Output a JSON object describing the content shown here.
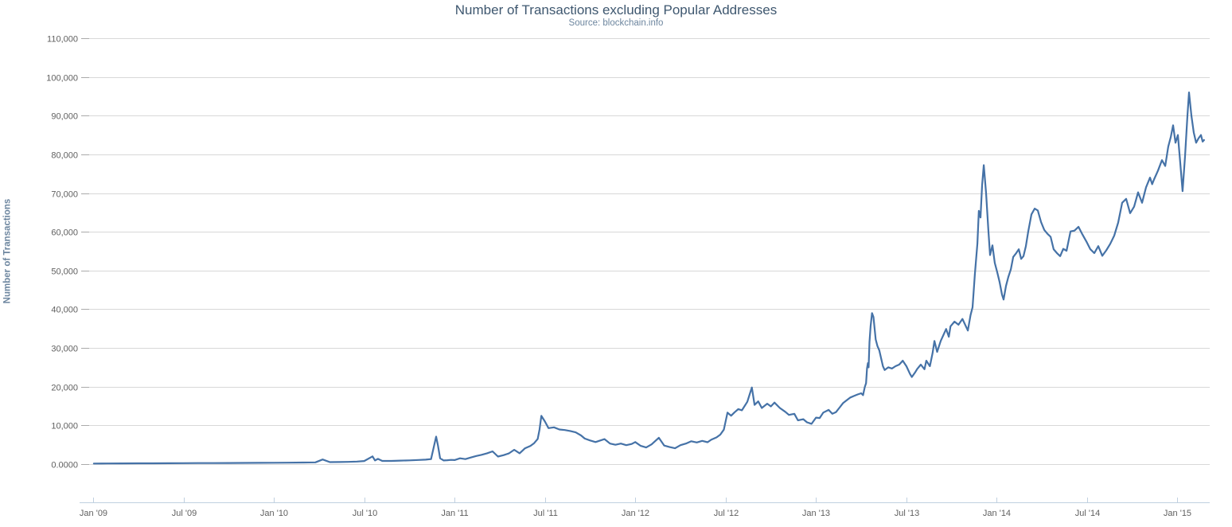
{
  "header": {
    "title": "Number of Transactions excluding Popular Addresses",
    "subtitle": "Source: blockchain.info"
  },
  "colors": {
    "series": "#4572A7",
    "title": "#3E576F",
    "subtitle": "#6D869F",
    "axis_labels": "#606060",
    "gridline": "#D8D8D8",
    "axis_line": "#C0D0E0",
    "y_tick": "#AAAAAA",
    "background": "#FFFFFF"
  },
  "chart_data": {
    "type": "line",
    "title": "Number of Transactions excluding Popular Addresses",
    "subtitle": "Source: blockchain.info",
    "xlabel": "",
    "ylabel": "Number of Transactions",
    "grid": true,
    "legend": false,
    "ylim": [
      0,
      110000
    ],
    "xlim_years": [
      2009.0,
      2015.18
    ],
    "y_ticks": [
      {
        "v": 110000,
        "label": "110,000"
      },
      {
        "v": 100000,
        "label": "100,000"
      },
      {
        "v": 90000,
        "label": "90,000"
      },
      {
        "v": 80000,
        "label": "80,000"
      },
      {
        "v": 70000,
        "label": "70,000"
      },
      {
        "v": 60000,
        "label": "60,000"
      },
      {
        "v": 50000,
        "label": "50,000"
      },
      {
        "v": 40000,
        "label": "40,000"
      },
      {
        "v": 30000,
        "label": "30,000"
      },
      {
        "v": 20000,
        "label": "20,000"
      },
      {
        "v": 10000,
        "label": "10,000"
      },
      {
        "v": 0,
        "label": "0.0000"
      }
    ],
    "x_ticks": [
      {
        "t": 2009.0,
        "label": "Jan '09"
      },
      {
        "t": 2009.5,
        "label": "Jul '09"
      },
      {
        "t": 2010.0,
        "label": "Jan '10"
      },
      {
        "t": 2010.5,
        "label": "Jul '10"
      },
      {
        "t": 2011.0,
        "label": "Jan '11"
      },
      {
        "t": 2011.5,
        "label": "Jul '11"
      },
      {
        "t": 2012.0,
        "label": "Jan '12"
      },
      {
        "t": 2012.5,
        "label": "Jul '12"
      },
      {
        "t": 2013.0,
        "label": "Jan '13"
      },
      {
        "t": 2013.5,
        "label": "Jul '13"
      },
      {
        "t": 2014.0,
        "label": "Jan '14"
      },
      {
        "t": 2014.5,
        "label": "Jul '14"
      },
      {
        "t": 2015.0,
        "label": "Jan '15"
      }
    ],
    "series": [
      {
        "name": "Number of Transactions",
        "color": "#4572A7",
        "points": [
          [
            2009.004,
            150
          ],
          [
            2009.08,
            160
          ],
          [
            2009.16,
            180
          ],
          [
            2009.25,
            200
          ],
          [
            2009.33,
            210
          ],
          [
            2009.42,
            230
          ],
          [
            2009.5,
            240
          ],
          [
            2009.58,
            260
          ],
          [
            2009.67,
            270
          ],
          [
            2009.75,
            290
          ],
          [
            2009.83,
            300
          ],
          [
            2009.92,
            320
          ],
          [
            2010.0,
            350
          ],
          [
            2010.08,
            380
          ],
          [
            2010.16,
            420
          ],
          [
            2010.23,
            460
          ],
          [
            2010.27,
            1200
          ],
          [
            2010.31,
            520
          ],
          [
            2010.36,
            540
          ],
          [
            2010.41,
            580
          ],
          [
            2010.46,
            650
          ],
          [
            2010.5,
            800
          ],
          [
            2010.546,
            2000
          ],
          [
            2010.56,
            950
          ],
          [
            2010.576,
            1350
          ],
          [
            2010.6,
            820
          ],
          [
            2010.65,
            830
          ],
          [
            2010.7,
            900
          ],
          [
            2010.75,
            960
          ],
          [
            2010.8,
            1060
          ],
          [
            2010.84,
            1160
          ],
          [
            2010.87,
            1300
          ],
          [
            2010.898,
            7100
          ],
          [
            2010.908,
            4800
          ],
          [
            2010.92,
            1500
          ],
          [
            2010.94,
            950
          ],
          [
            2010.96,
            1000
          ],
          [
            2010.98,
            1100
          ],
          [
            2011.0,
            1050
          ],
          [
            2011.03,
            1500
          ],
          [
            2011.06,
            1300
          ],
          [
            2011.09,
            1700
          ],
          [
            2011.12,
            2100
          ],
          [
            2011.15,
            2400
          ],
          [
            2011.18,
            2800
          ],
          [
            2011.21,
            3300
          ],
          [
            2011.24,
            1950
          ],
          [
            2011.27,
            2300
          ],
          [
            2011.3,
            2750
          ],
          [
            2011.33,
            3700
          ],
          [
            2011.36,
            2800
          ],
          [
            2011.39,
            4100
          ],
          [
            2011.42,
            4700
          ],
          [
            2011.44,
            5400
          ],
          [
            2011.46,
            6500
          ],
          [
            2011.47,
            8900
          ],
          [
            2011.48,
            12450
          ],
          [
            2011.5,
            11000
          ],
          [
            2011.52,
            9300
          ],
          [
            2011.55,
            9500
          ],
          [
            2011.58,
            8950
          ],
          [
            2011.61,
            8800
          ],
          [
            2011.64,
            8550
          ],
          [
            2011.67,
            8200
          ],
          [
            2011.7,
            7400
          ],
          [
            2011.72,
            6600
          ],
          [
            2011.75,
            6100
          ],
          [
            2011.78,
            5700
          ],
          [
            2011.8,
            6000
          ],
          [
            2011.83,
            6450
          ],
          [
            2011.86,
            5300
          ],
          [
            2011.89,
            5000
          ],
          [
            2011.92,
            5300
          ],
          [
            2011.95,
            4900
          ],
          [
            2011.98,
            5200
          ],
          [
            2012.0,
            5700
          ],
          [
            2012.03,
            4700
          ],
          [
            2012.06,
            4300
          ],
          [
            2012.09,
            5100
          ],
          [
            2012.13,
            6800
          ],
          [
            2012.16,
            4800
          ],
          [
            2012.19,
            4400
          ],
          [
            2012.22,
            4100
          ],
          [
            2012.25,
            4900
          ],
          [
            2012.28,
            5300
          ],
          [
            2012.31,
            5900
          ],
          [
            2012.34,
            5600
          ],
          [
            2012.37,
            6000
          ],
          [
            2012.4,
            5650
          ],
          [
            2012.42,
            6300
          ],
          [
            2012.45,
            6900
          ],
          [
            2012.47,
            7600
          ],
          [
            2012.49,
            8900
          ],
          [
            2012.51,
            13300
          ],
          [
            2012.53,
            12500
          ],
          [
            2012.55,
            13400
          ],
          [
            2012.57,
            14200
          ],
          [
            2012.59,
            13900
          ],
          [
            2012.62,
            16100
          ],
          [
            2012.645,
            19800
          ],
          [
            2012.66,
            15300
          ],
          [
            2012.68,
            16200
          ],
          [
            2012.7,
            14500
          ],
          [
            2012.73,
            15600
          ],
          [
            2012.75,
            14900
          ],
          [
            2012.77,
            15900
          ],
          [
            2012.8,
            14500
          ],
          [
            2012.83,
            13500
          ],
          [
            2012.85,
            12700
          ],
          [
            2012.88,
            13000
          ],
          [
            2012.9,
            11300
          ],
          [
            2012.93,
            11600
          ],
          [
            2012.95,
            10800
          ],
          [
            2012.975,
            10400
          ],
          [
            2013.0,
            12000
          ],
          [
            2013.02,
            11900
          ],
          [
            2013.04,
            13300
          ],
          [
            2013.07,
            14000
          ],
          [
            2013.09,
            13000
          ],
          [
            2013.11,
            13400
          ],
          [
            2013.13,
            14600
          ],
          [
            2013.15,
            15800
          ],
          [
            2013.17,
            16500
          ],
          [
            2013.19,
            17200
          ],
          [
            2013.21,
            17600
          ],
          [
            2013.23,
            18000
          ],
          [
            2013.25,
            18300
          ],
          [
            2013.26,
            17800
          ],
          [
            2013.27,
            19900
          ],
          [
            2013.277,
            20900
          ],
          [
            2013.282,
            24700
          ],
          [
            2013.287,
            26100
          ],
          [
            2013.291,
            25000
          ],
          [
            2013.296,
            31500
          ],
          [
            2013.302,
            35600
          ],
          [
            2013.31,
            39000
          ],
          [
            2013.318,
            38000
          ],
          [
            2013.33,
            32200
          ],
          [
            2013.34,
            30500
          ],
          [
            2013.35,
            29400
          ],
          [
            2013.37,
            25300
          ],
          [
            2013.38,
            24300
          ],
          [
            2013.4,
            25000
          ],
          [
            2013.42,
            24700
          ],
          [
            2013.44,
            25300
          ],
          [
            2013.46,
            25700
          ],
          [
            2013.48,
            26700
          ],
          [
            2013.5,
            25300
          ],
          [
            2013.52,
            23300
          ],
          [
            2013.53,
            22500
          ],
          [
            2013.55,
            23800
          ],
          [
            2013.56,
            24600
          ],
          [
            2013.58,
            25700
          ],
          [
            2013.6,
            24500
          ],
          [
            2013.61,
            26700
          ],
          [
            2013.63,
            25300
          ],
          [
            2013.645,
            28700
          ],
          [
            2013.655,
            31800
          ],
          [
            2013.67,
            29000
          ],
          [
            2013.69,
            31800
          ],
          [
            2013.72,
            34900
          ],
          [
            2013.735,
            32900
          ],
          [
            2013.744,
            35600
          ],
          [
            2013.766,
            36800
          ],
          [
            2013.788,
            36000
          ],
          [
            2013.81,
            37500
          ],
          [
            2013.84,
            34500
          ],
          [
            2013.855,
            38500
          ],
          [
            2013.866,
            40500
          ],
          [
            2013.879,
            49000
          ],
          [
            2013.893,
            57000
          ],
          [
            2013.901,
            65400
          ],
          [
            2013.91,
            63700
          ],
          [
            2013.919,
            72000
          ],
          [
            2013.928,
            77200
          ],
          [
            2013.941,
            70000
          ],
          [
            2013.954,
            60000
          ],
          [
            2013.963,
            54000
          ],
          [
            2013.976,
            56500
          ],
          [
            2013.989,
            52000
          ],
          [
            2014.003,
            49500
          ],
          [
            2014.016,
            47000
          ],
          [
            2014.029,
            43800
          ],
          [
            2014.038,
            42500
          ],
          [
            2014.051,
            46000
          ],
          [
            2014.064,
            48300
          ],
          [
            2014.078,
            50300
          ],
          [
            2014.091,
            53500
          ],
          [
            2014.108,
            54500
          ],
          [
            2014.122,
            55500
          ],
          [
            2014.135,
            53000
          ],
          [
            2014.148,
            53700
          ],
          [
            2014.161,
            56300
          ],
          [
            2014.174,
            60000
          ],
          [
            2014.192,
            64500
          ],
          [
            2014.21,
            66000
          ],
          [
            2014.227,
            65500
          ],
          [
            2014.245,
            62500
          ],
          [
            2014.263,
            60500
          ],
          [
            2014.28,
            59500
          ],
          [
            2014.298,
            58700
          ],
          [
            2014.315,
            55500
          ],
          [
            2014.333,
            54500
          ],
          [
            2014.351,
            53700
          ],
          [
            2014.368,
            55600
          ],
          [
            2014.386,
            55100
          ],
          [
            2014.408,
            60100
          ],
          [
            2014.43,
            60300
          ],
          [
            2014.452,
            61300
          ],
          [
            2014.474,
            59300
          ],
          [
            2014.496,
            57500
          ],
          [
            2014.518,
            55500
          ],
          [
            2014.54,
            54500
          ],
          [
            2014.562,
            56300
          ],
          [
            2014.584,
            53800
          ],
          [
            2014.606,
            55200
          ],
          [
            2014.628,
            56900
          ],
          [
            2014.65,
            59000
          ],
          [
            2014.672,
            62400
          ],
          [
            2014.694,
            67500
          ],
          [
            2014.716,
            68500
          ],
          [
            2014.738,
            64800
          ],
          [
            2014.76,
            66500
          ],
          [
            2014.782,
            70200
          ],
          [
            2014.804,
            67500
          ],
          [
            2014.826,
            71500
          ],
          [
            2014.848,
            74000
          ],
          [
            2014.86,
            72300
          ],
          [
            2014.87,
            73500
          ],
          [
            2014.892,
            75800
          ],
          [
            2014.914,
            78500
          ],
          [
            2014.932,
            77000
          ],
          [
            2014.949,
            82000
          ],
          [
            2014.963,
            84500
          ],
          [
            2014.976,
            87500
          ],
          [
            2014.989,
            83000
          ],
          [
            2015.002,
            85000
          ],
          [
            2015.015,
            78000
          ],
          [
            2015.028,
            70500
          ],
          [
            2015.042,
            79500
          ],
          [
            2015.055,
            90000
          ],
          [
            2015.064,
            96000
          ],
          [
            2015.077,
            90000
          ],
          [
            2015.09,
            85700
          ],
          [
            2015.103,
            83000
          ],
          [
            2015.117,
            84200
          ],
          [
            2015.13,
            85000
          ],
          [
            2015.139,
            83300
          ],
          [
            2015.147,
            83700
          ]
        ]
      }
    ]
  }
}
